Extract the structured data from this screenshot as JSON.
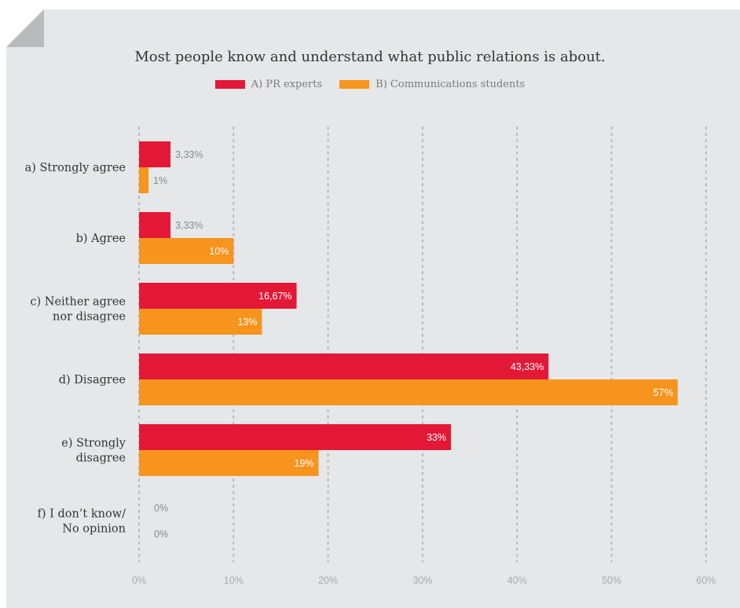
{
  "chart_data": {
    "type": "bar",
    "orientation": "horizontal",
    "title": "Most people know and understand what public relations is about.",
    "categories": [
      [
        "a) Strongly agree"
      ],
      [
        "b) Agree"
      ],
      [
        "c) Neither agree",
        "nor disagree"
      ],
      [
        "d) Disagree"
      ],
      [
        "e) Strongly",
        "disagree"
      ],
      [
        "f) I don’t know/",
        "No opinion"
      ]
    ],
    "series": [
      {
        "name": "A) PR experts",
        "color": "#e31837",
        "values": [
          3.33,
          3.33,
          16.67,
          43.33,
          33,
          0
        ],
        "labels": [
          "3,33%",
          "3,33%",
          "16,67%",
          "43,33%",
          "33%",
          "0%"
        ]
      },
      {
        "name": "B) Communications students",
        "color": "#f7941d",
        "values": [
          1,
          10,
          13,
          57,
          19,
          0
        ],
        "labels": [
          "1%",
          "10%",
          "13%",
          "57%",
          "19%",
          "0%"
        ]
      }
    ],
    "x_ticks": [
      0,
      10,
      20,
      30,
      40,
      50,
      60
    ],
    "x_tick_labels": [
      "0%",
      "10%",
      "20%",
      "30%",
      "40%",
      "50%",
      "60%"
    ],
    "xlim": [
      0,
      60
    ],
    "grid": "vertical-dotted",
    "legend_position": "top-center"
  }
}
